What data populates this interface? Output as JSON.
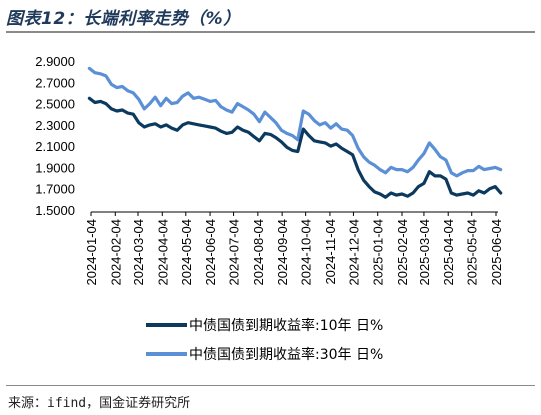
{
  "header": {
    "title": "图表12：长端利率走势（%）"
  },
  "footer": {
    "source": "来源：ifind，国金证券研究所"
  },
  "chart_data": {
    "type": "line",
    "title": "长端利率走势（%）",
    "xlabel": "",
    "ylabel": "",
    "ylim": [
      1.5,
      2.9
    ],
    "yticks": [
      "1.5000",
      "1.7000",
      "1.9000",
      "2.1000",
      "2.3000",
      "2.5000",
      "2.7000",
      "2.9000"
    ],
    "xticks": [
      "2024-01-04",
      "2024-02-04",
      "2024-03-04",
      "2024-04-04",
      "2024-05-04",
      "2024-06-04",
      "2024-07-04",
      "2024-08-04",
      "2024-09-04",
      "2024-10-04",
      "2024-11-04",
      "2024-12-04",
      "2025-01-04",
      "2025-02-04",
      "2025-03-04",
      "2025-04-04",
      "2025-05-04",
      "2025-06-04"
    ],
    "grid": false,
    "legend_position": "bottom",
    "series": [
      {
        "name": "中债国债到期收益率:10年 日%",
        "color": "#0c3a5e",
        "x": [
          "2024-01-02",
          "2024-01-09",
          "2024-01-16",
          "2024-01-23",
          "2024-01-30",
          "2024-02-06",
          "2024-02-13",
          "2024-02-20",
          "2024-02-27",
          "2024-03-05",
          "2024-03-12",
          "2024-03-19",
          "2024-03-26",
          "2024-04-02",
          "2024-04-09",
          "2024-04-16",
          "2024-04-23",
          "2024-04-30",
          "2024-05-07",
          "2024-05-14",
          "2024-05-21",
          "2024-05-28",
          "2024-06-04",
          "2024-06-11",
          "2024-06-18",
          "2024-06-25",
          "2024-07-02",
          "2024-07-09",
          "2024-07-16",
          "2024-07-23",
          "2024-07-30",
          "2024-08-06",
          "2024-08-13",
          "2024-08-20",
          "2024-08-27",
          "2024-09-03",
          "2024-09-10",
          "2024-09-17",
          "2024-09-24",
          "2024-10-01",
          "2024-10-08",
          "2024-10-15",
          "2024-10-22",
          "2024-10-29",
          "2024-11-05",
          "2024-11-12",
          "2024-11-19",
          "2024-11-26",
          "2024-12-03",
          "2024-12-10",
          "2024-12-17",
          "2024-12-24",
          "2024-12-31",
          "2025-01-07",
          "2025-01-14",
          "2025-01-21",
          "2025-01-28",
          "2025-02-04",
          "2025-02-11",
          "2025-02-18",
          "2025-02-25",
          "2025-03-04",
          "2025-03-11",
          "2025-03-18",
          "2025-03-25",
          "2025-04-01",
          "2025-04-08",
          "2025-04-15",
          "2025-04-22",
          "2025-04-29",
          "2025-05-06",
          "2025-05-13",
          "2025-05-20",
          "2025-05-27",
          "2025-06-03",
          "2025-06-10"
        ],
        "values": [
          2.55,
          2.51,
          2.52,
          2.5,
          2.45,
          2.43,
          2.44,
          2.41,
          2.4,
          2.32,
          2.28,
          2.3,
          2.31,
          2.28,
          2.3,
          2.27,
          2.25,
          2.3,
          2.32,
          2.31,
          2.3,
          2.29,
          2.28,
          2.27,
          2.24,
          2.22,
          2.23,
          2.28,
          2.25,
          2.23,
          2.19,
          2.15,
          2.22,
          2.21,
          2.18,
          2.14,
          2.09,
          2.06,
          2.05,
          2.26,
          2.2,
          2.15,
          2.14,
          2.13,
          2.1,
          2.12,
          2.08,
          2.05,
          2.02,
          1.88,
          1.78,
          1.72,
          1.67,
          1.65,
          1.62,
          1.66,
          1.64,
          1.65,
          1.63,
          1.66,
          1.72,
          1.75,
          1.86,
          1.82,
          1.82,
          1.79,
          1.66,
          1.64,
          1.65,
          1.66,
          1.64,
          1.68,
          1.66,
          1.7,
          1.72,
          1.66
        ]
      },
      {
        "name": "中债国债到期收益率:30年 日%",
        "color": "#5b8fd6",
        "x": [
          "2024-01-02",
          "2024-01-09",
          "2024-01-16",
          "2024-01-23",
          "2024-01-30",
          "2024-02-06",
          "2024-02-13",
          "2024-02-20",
          "2024-02-27",
          "2024-03-05",
          "2024-03-12",
          "2024-03-19",
          "2024-03-26",
          "2024-04-02",
          "2024-04-09",
          "2024-04-16",
          "2024-04-23",
          "2024-04-30",
          "2024-05-07",
          "2024-05-14",
          "2024-05-21",
          "2024-05-28",
          "2024-06-04",
          "2024-06-11",
          "2024-06-18",
          "2024-06-25",
          "2024-07-02",
          "2024-07-09",
          "2024-07-16",
          "2024-07-23",
          "2024-07-30",
          "2024-08-06",
          "2024-08-13",
          "2024-08-20",
          "2024-08-27",
          "2024-09-03",
          "2024-09-10",
          "2024-09-17",
          "2024-09-24",
          "2024-10-01",
          "2024-10-08",
          "2024-10-15",
          "2024-10-22",
          "2024-10-29",
          "2024-11-05",
          "2024-11-12",
          "2024-11-19",
          "2024-11-26",
          "2024-12-03",
          "2024-12-10",
          "2024-12-17",
          "2024-12-24",
          "2024-12-31",
          "2025-01-07",
          "2025-01-14",
          "2025-01-21",
          "2025-01-28",
          "2025-02-04",
          "2025-02-11",
          "2025-02-18",
          "2025-02-25",
          "2025-03-04",
          "2025-03-11",
          "2025-03-18",
          "2025-03-25",
          "2025-04-01",
          "2025-04-08",
          "2025-04-15",
          "2025-04-22",
          "2025-04-29",
          "2025-05-06",
          "2025-05-13",
          "2025-05-20",
          "2025-05-27",
          "2025-06-03",
          "2025-06-10"
        ],
        "values": [
          2.83,
          2.79,
          2.78,
          2.76,
          2.68,
          2.65,
          2.66,
          2.62,
          2.6,
          2.54,
          2.45,
          2.5,
          2.56,
          2.48,
          2.55,
          2.5,
          2.51,
          2.57,
          2.6,
          2.55,
          2.56,
          2.54,
          2.52,
          2.53,
          2.47,
          2.44,
          2.42,
          2.5,
          2.47,
          2.44,
          2.4,
          2.33,
          2.42,
          2.37,
          2.32,
          2.25,
          2.22,
          2.2,
          2.16,
          2.43,
          2.4,
          2.34,
          2.3,
          2.32,
          2.27,
          2.31,
          2.26,
          2.25,
          2.2,
          2.08,
          2.0,
          1.95,
          1.92,
          1.88,
          1.85,
          1.9,
          1.88,
          1.88,
          1.86,
          1.9,
          1.97,
          2.03,
          2.13,
          2.07,
          2.0,
          1.97,
          1.85,
          1.82,
          1.85,
          1.87,
          1.87,
          1.91,
          1.88,
          1.89,
          1.9,
          1.88
        ]
      }
    ]
  }
}
